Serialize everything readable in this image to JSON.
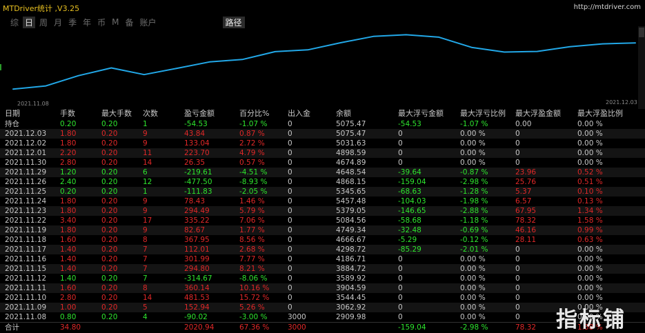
{
  "app": {
    "title": "MTDriver统计 ,V3.25",
    "url": "http://mtdriver.com"
  },
  "tabs": [
    "综",
    "日",
    "周",
    "月",
    "季",
    "年",
    "币",
    "M",
    "备",
    "账户"
  ],
  "active_tab": "日",
  "path_tab": "路径",
  "chart": {
    "start_date": "2021.11.08",
    "end_date": "2021.12.03",
    "line_color": "#22a8e8",
    "balance_series": [
      2909.98,
      3062.92,
      3544.45,
      3904.59,
      3589.92,
      3884.72,
      4186.71,
      4298.72,
      4666.67,
      4749.34,
      5084.56,
      5379.05,
      5457.48,
      5345.65,
      4868.15,
      4648.54,
      4674.89,
      4898.59,
      5031.63,
      5075.47
    ]
  },
  "columns": [
    "日期",
    "手数",
    "最大手数",
    "次数",
    "盈亏金额",
    "百分比%",
    "出入金",
    "余额",
    "最大浮亏金额",
    "最大浮亏比例",
    "最大浮盈金额",
    "最大浮盈比例"
  ],
  "rows": [
    {
      "date": "持仓",
      "lots": "0.20",
      "max": "0.20",
      "cnt": "1",
      "pnl": "-54.53",
      "pct": "-1.07 %",
      "flow": "0",
      "bal": "5075.47",
      "mfl": "-54.53",
      "mflp": "-1.07 %",
      "mfp": "0.00",
      "mfpp": "0.00 %",
      "c": "green"
    },
    {
      "date": "2021.12.03",
      "lots": "1.80",
      "max": "0.20",
      "cnt": "9",
      "pnl": "43.84",
      "pct": "0.87 %",
      "flow": "0",
      "bal": "5075.47",
      "mfl": "0",
      "mflp": "0.00 %",
      "mfp": "0",
      "mfpp": "0.00 %",
      "c": "red"
    },
    {
      "date": "2021.12.02",
      "lots": "1.80",
      "max": "0.20",
      "cnt": "9",
      "pnl": "133.04",
      "pct": "2.72 %",
      "flow": "0",
      "bal": "5031.63",
      "mfl": "0",
      "mflp": "0.00 %",
      "mfp": "0",
      "mfpp": "0.00 %",
      "c": "red"
    },
    {
      "date": "2021.12.01",
      "lots": "2.20",
      "max": "0.20",
      "cnt": "11",
      "pnl": "223.70",
      "pct": "4.79 %",
      "flow": "0",
      "bal": "4898.59",
      "mfl": "0",
      "mflp": "0.00 %",
      "mfp": "0",
      "mfpp": "0.00 %",
      "c": "red"
    },
    {
      "date": "2021.11.30",
      "lots": "2.80",
      "max": "0.20",
      "cnt": "14",
      "pnl": "26.35",
      "pct": "0.57 %",
      "flow": "0",
      "bal": "4674.89",
      "mfl": "0",
      "mflp": "0.00 %",
      "mfp": "0",
      "mfpp": "0.00 %",
      "c": "red"
    },
    {
      "date": "2021.11.29",
      "lots": "1.20",
      "max": "0.20",
      "cnt": "6",
      "pnl": "-219.61",
      "pct": "-4.51 %",
      "flow": "0",
      "bal": "4648.54",
      "mfl": "-39.64",
      "mflp": "-0.87 %",
      "mfp": "23.96",
      "mfpp": "0.52 %",
      "c": "green"
    },
    {
      "date": "2021.11.26",
      "lots": "2.40",
      "max": "0.20",
      "cnt": "12",
      "pnl": "-477.50",
      "pct": "-8.93 %",
      "flow": "0",
      "bal": "4868.15",
      "mfl": "-159.04",
      "mflp": "-2.98 %",
      "mfp": "25.76",
      "mfpp": "0.51 %",
      "c": "green"
    },
    {
      "date": "2021.11.25",
      "lots": "0.20",
      "max": "0.20",
      "cnt": "1",
      "pnl": "-111.83",
      "pct": "-2.05 %",
      "flow": "0",
      "bal": "5345.65",
      "mfl": "-68.63",
      "mflp": "-1.28 %",
      "mfp": "5.37",
      "mfpp": "0.10 %",
      "c": "green"
    },
    {
      "date": "2021.11.24",
      "lots": "1.80",
      "max": "0.20",
      "cnt": "9",
      "pnl": "78.43",
      "pct": "1.46 %",
      "flow": "0",
      "bal": "5457.48",
      "mfl": "-104.03",
      "mflp": "-1.98 %",
      "mfp": "6.57",
      "mfpp": "0.13 %",
      "c": "red"
    },
    {
      "date": "2021.11.23",
      "lots": "1.80",
      "max": "0.20",
      "cnt": "9",
      "pnl": "294.49",
      "pct": "5.79 %",
      "flow": "0",
      "bal": "5379.05",
      "mfl": "-146.65",
      "mflp": "-2.88 %",
      "mfp": "67.95",
      "mfpp": "1.34 %",
      "c": "red"
    },
    {
      "date": "2021.11.22",
      "lots": "3.40",
      "max": "0.20",
      "cnt": "17",
      "pnl": "335.22",
      "pct": "7.06 %",
      "flow": "0",
      "bal": "5084.56",
      "mfl": "-58.68",
      "mflp": "-1.18 %",
      "mfp": "78.32",
      "mfpp": "1.58 %",
      "c": "red"
    },
    {
      "date": "2021.11.19",
      "lots": "1.80",
      "max": "0.20",
      "cnt": "9",
      "pnl": "82.67",
      "pct": "1.77 %",
      "flow": "0",
      "bal": "4749.34",
      "mfl": "-32.48",
      "mflp": "-0.69 %",
      "mfp": "46.16",
      "mfpp": "0.99 %",
      "c": "red"
    },
    {
      "date": "2021.11.18",
      "lots": "1.60",
      "max": "0.20",
      "cnt": "8",
      "pnl": "367.95",
      "pct": "8.56 %",
      "flow": "0",
      "bal": "4666.67",
      "mfl": "-5.29",
      "mflp": "-0.12 %",
      "mfp": "28.11",
      "mfpp": "0.63 %",
      "c": "red"
    },
    {
      "date": "2021.11.17",
      "lots": "1.40",
      "max": "0.20",
      "cnt": "7",
      "pnl": "112.01",
      "pct": "2.68 %",
      "flow": "0",
      "bal": "4298.72",
      "mfl": "-85.29",
      "mflp": "-2.01 %",
      "mfp": "0",
      "mfpp": "0.00 %",
      "c": "red"
    },
    {
      "date": "2021.11.16",
      "lots": "1.40",
      "max": "0.20",
      "cnt": "7",
      "pnl": "301.99",
      "pct": "7.77 %",
      "flow": "0",
      "bal": "4186.71",
      "mfl": "0",
      "mflp": "0.00 %",
      "mfp": "0",
      "mfpp": "0.00 %",
      "c": "red"
    },
    {
      "date": "2021.11.15",
      "lots": "1.40",
      "max": "0.20",
      "cnt": "7",
      "pnl": "294.80",
      "pct": "8.21 %",
      "flow": "0",
      "bal": "3884.72",
      "mfl": "0",
      "mflp": "0.00 %",
      "mfp": "0",
      "mfpp": "0.00 %",
      "c": "red"
    },
    {
      "date": "2021.11.12",
      "lots": "1.40",
      "max": "0.20",
      "cnt": "7",
      "pnl": "-314.67",
      "pct": "-8.06 %",
      "flow": "0",
      "bal": "3589.92",
      "mfl": "0",
      "mflp": "0.00 %",
      "mfp": "0",
      "mfpp": "0.00 %",
      "c": "green"
    },
    {
      "date": "2021.11.11",
      "lots": "1.60",
      "max": "0.20",
      "cnt": "8",
      "pnl": "360.14",
      "pct": "10.16 %",
      "flow": "0",
      "bal": "3904.59",
      "mfl": "0",
      "mflp": "0.00 %",
      "mfp": "0",
      "mfpp": "0.00 %",
      "c": "red"
    },
    {
      "date": "2021.11.10",
      "lots": "2.80",
      "max": "0.20",
      "cnt": "14",
      "pnl": "481.53",
      "pct": "15.72 %",
      "flow": "0",
      "bal": "3544.45",
      "mfl": "0",
      "mflp": "0.00 %",
      "mfp": "0",
      "mfpp": "0.00 %",
      "c": "red"
    },
    {
      "date": "2021.11.09",
      "lots": "1.00",
      "max": "0.20",
      "cnt": "5",
      "pnl": "152.94",
      "pct": "5.26 %",
      "flow": "0",
      "bal": "3062.92",
      "mfl": "0",
      "mflp": "0.00 %",
      "mfp": "0",
      "mfpp": "0.00 %",
      "c": "red"
    },
    {
      "date": "2021.11.08",
      "lots": "0.80",
      "max": "0.20",
      "cnt": "4",
      "pnl": "-90.02",
      "pct": "-3.00 %",
      "flow": "3000",
      "bal": "2909.98",
      "mfl": "0",
      "mflp": "0.00 %",
      "mfp": "0",
      "mfpp": "0.00 %",
      "c": "green"
    }
  ],
  "total": {
    "date": "合计",
    "lots": "34.80",
    "max": "",
    "cnt": "",
    "pnl": "2020.94",
    "pct": "67.36 %",
    "flow": "3000",
    "bal": "",
    "mfl": "-159.04",
    "mflp": "-2.98 %",
    "mfp": "78.32",
    "mfpp": "1.58 %"
  },
  "watermark": "指标铺"
}
